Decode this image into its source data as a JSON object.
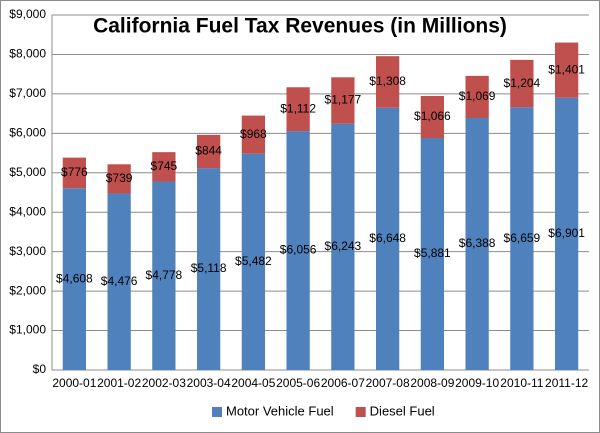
{
  "chart_data": {
    "type": "stacked_bar",
    "title": "California Fuel Tax Revenues (in Millions)",
    "categories": [
      "2000-01",
      "2001-02",
      "2002-03",
      "2003-04",
      "2004-05",
      "2005-06",
      "2006-07",
      "2007-08",
      "2008-09",
      "2009-10",
      "2010-11",
      "2011-12"
    ],
    "series": [
      {
        "name": "Motor Vehicle Fuel",
        "color": "#4f81bd",
        "values": [
          4608,
          4476,
          4778,
          5118,
          5482,
          6056,
          6243,
          6648,
          5881,
          6388,
          6659,
          6901
        ],
        "value_labels": [
          "$4,608",
          "$4,476",
          "$4,778",
          "$5,118",
          "$5,482",
          "$6,056",
          "$6,243",
          "$6,648",
          "$5,881",
          "$6,388",
          "$6,659",
          "$6,901"
        ]
      },
      {
        "name": "Diesel Fuel",
        "color": "#c0504d",
        "values": [
          776,
          739,
          745,
          844,
          968,
          1112,
          1177,
          1308,
          1066,
          1069,
          1204,
          1401
        ],
        "value_labels": [
          "$776",
          "$739",
          "$745",
          "$844",
          "$968",
          "$1,112",
          "$1,177",
          "$1,308",
          "$1,066",
          "$1,069",
          "$1,204",
          "$1,401"
        ]
      }
    ],
    "ylim": [
      0,
      9000
    ],
    "yticks": [
      {
        "value": 0,
        "label": "$0"
      },
      {
        "value": 1000,
        "label": "$1,000"
      },
      {
        "value": 2000,
        "label": "$2,000"
      },
      {
        "value": 3000,
        "label": "$3,000"
      },
      {
        "value": 4000,
        "label": "$4,000"
      },
      {
        "value": 5000,
        "label": "$5,000"
      },
      {
        "value": 6000,
        "label": "$6,000"
      },
      {
        "value": 7000,
        "label": "$7,000"
      },
      {
        "value": 8000,
        "label": "$8,000"
      },
      {
        "value": 9000,
        "label": "$9,000"
      }
    ],
    "grid": true,
    "legend": "bottom"
  }
}
